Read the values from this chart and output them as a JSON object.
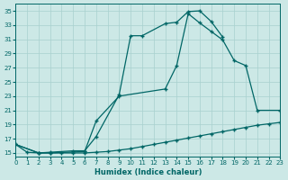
{
  "xlabel": "Humidex (Indice chaleur)",
  "background_color": "#cce8e6",
  "grid_color": "#a8d0ce",
  "line_color": "#006666",
  "xlim": [
    0,
    23
  ],
  "ylim": [
    14.5,
    36
  ],
  "xticks": [
    0,
    1,
    2,
    3,
    4,
    5,
    6,
    7,
    8,
    9,
    10,
    11,
    12,
    13,
    14,
    15,
    16,
    17,
    18,
    19,
    20,
    21,
    22,
    23
  ],
  "yticks": [
    15,
    17,
    19,
    21,
    23,
    25,
    27,
    29,
    31,
    33,
    35
  ],
  "curve1_x": [
    0,
    1,
    2,
    3,
    4,
    5,
    6,
    7,
    8,
    9,
    10,
    11,
    12,
    13,
    14,
    15,
    16,
    17,
    18,
    19,
    20,
    21,
    22,
    23
  ],
  "curve1_y": [
    16.2,
    15.1,
    15.0,
    15.0,
    15.0,
    15.0,
    15.0,
    15.1,
    15.2,
    15.4,
    15.6,
    15.9,
    16.2,
    16.5,
    16.8,
    17.1,
    17.4,
    17.7,
    18.0,
    18.3,
    18.6,
    18.9,
    19.1,
    19.3
  ],
  "curve2_x": [
    0,
    2,
    3,
    6,
    7,
    9,
    13,
    14,
    15,
    16,
    17,
    18,
    19,
    20,
    21,
    23
  ],
  "curve2_y": [
    16.2,
    15.0,
    15.0,
    15.2,
    19.5,
    23.0,
    24.0,
    27.3,
    34.6,
    33.3,
    32.1,
    30.9,
    28.0,
    27.3,
    21.0,
    21.0
  ],
  "curve3_x": [
    0,
    2,
    3,
    5,
    6,
    7,
    9,
    10,
    11,
    13,
    14,
    15,
    16,
    17,
    18
  ],
  "curve3_y": [
    16.2,
    15.0,
    15.1,
    15.3,
    15.3,
    17.3,
    23.2,
    31.5,
    31.5,
    33.2,
    33.4,
    34.9,
    35.0,
    33.5,
    31.3
  ]
}
